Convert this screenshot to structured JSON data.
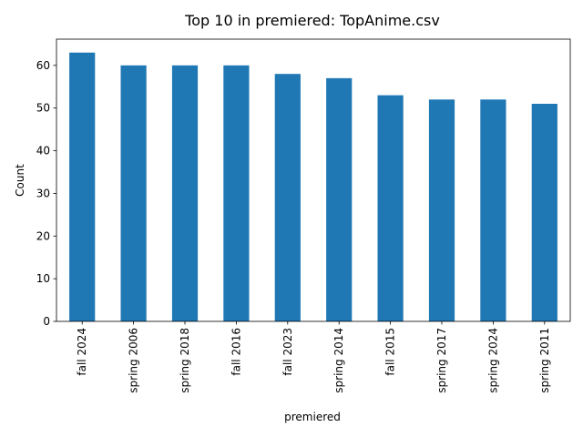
{
  "chart_data": {
    "type": "bar",
    "title": "Top 10 in premiered: TopAnime.csv",
    "xlabel": "premiered",
    "ylabel": "Count",
    "categories": [
      "fall 2024",
      "spring 2006",
      "spring 2018",
      "fall 2016",
      "fall 2023",
      "spring 2014",
      "fall 2015",
      "spring 2017",
      "spring 2024",
      "spring 2011"
    ],
    "values": [
      63,
      60,
      60,
      60,
      58,
      57,
      53,
      52,
      52,
      51
    ],
    "ylim": [
      0,
      66.15
    ],
    "yticks": [
      0,
      10,
      20,
      30,
      40,
      50,
      60
    ],
    "bar_color": "#1f77b4",
    "grid": false,
    "legend": false
  }
}
